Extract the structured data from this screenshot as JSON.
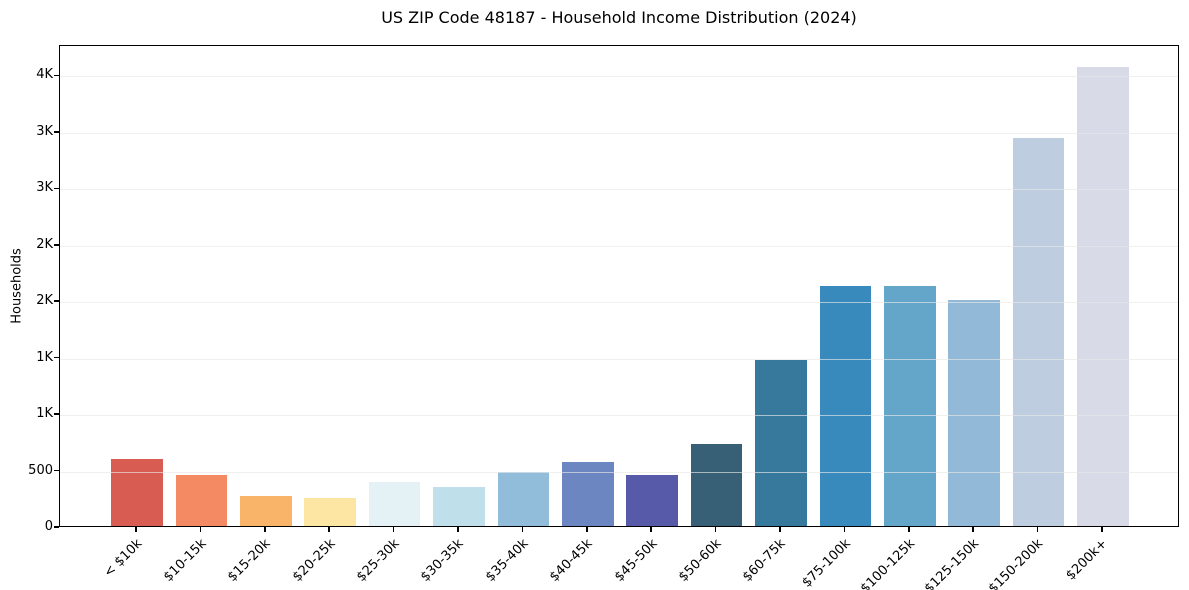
{
  "chart_data": {
    "type": "bar",
    "title": "US ZIP Code 48187 - Household Income Distribution (2024)",
    "xlabel": "",
    "ylabel": "Households",
    "categories": [
      "< $10k",
      "$10-15k",
      "$15-20k",
      "$20-25k",
      "$25-30k",
      "$30-35k",
      "$35-40k",
      "$40-45k",
      "$45-50k",
      "$50-60k",
      "$60-75k",
      "$75-100k",
      "$100-125k",
      "$125-150k",
      "$150-200k",
      "$200k+"
    ],
    "values": [
      595,
      455,
      262,
      252,
      388,
      350,
      475,
      570,
      455,
      725,
      1470,
      2125,
      2130,
      2005,
      3435,
      4065
    ],
    "bar_colors": [
      "#d85c52",
      "#f48a63",
      "#fab469",
      "#fde5a4",
      "#e4f1f5",
      "#bfe0eb",
      "#92bdda",
      "#6b86c0",
      "#575aa8",
      "#375f76",
      "#37789d",
      "#398abc",
      "#64a6ca",
      "#93b9d8",
      "#bfcde1",
      "#d8dae8"
    ],
    "yticks": {
      "values": [
        0,
        500,
        1000,
        1500,
        2000,
        2500,
        3000,
        3500,
        4000
      ],
      "labels": [
        "0",
        "500",
        "1K",
        "1K",
        "2K",
        "2K",
        "3K",
        "3K",
        "4K"
      ]
    },
    "ylim": [
      0,
      4270
    ],
    "grid": "horizontal",
    "grid_color": "#e8e8e8",
    "grid_over_bars": true,
    "legend": "none",
    "background_color": "#ffffff",
    "axis_color": "#000000"
  }
}
